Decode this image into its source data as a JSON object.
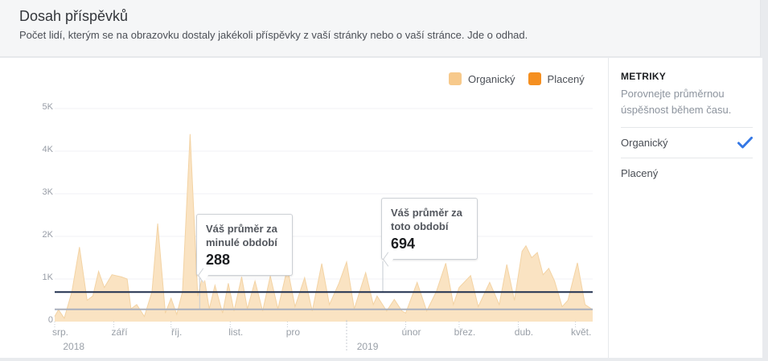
{
  "page": {
    "background": "#e9ebee",
    "card_background": "#ffffff",
    "band_background": "#f5f6f7"
  },
  "header": {
    "title": "Dosah příspěvků",
    "subtitle": "Počet lidí, kterým se na obrazovku dostaly jakékoli příspěvky z vaší stránky nebo o vaší stránce. Jde o odhad."
  },
  "legend": {
    "items": [
      {
        "label": "Organický",
        "color": "#f7c98b"
      },
      {
        "label": "Placený",
        "color": "#f58f20"
      }
    ]
  },
  "metrics_panel": {
    "title": "METRIKY",
    "description": "Porovnejte průměrnou úspěšnost během času.",
    "check_color": "#3578e5",
    "options": [
      {
        "label": "Organický",
        "selected": true
      },
      {
        "label": "Placený",
        "selected": false
      }
    ]
  },
  "chart_data": {
    "type": "area",
    "title": "Dosah příspěvků",
    "xlabel": "",
    "ylabel": "",
    "ylim": [
      0,
      5000
    ],
    "grid": true,
    "yticks": [
      {
        "label": "0",
        "value": 0
      },
      {
        "label": "1K",
        "value": 1000
      },
      {
        "label": "2K",
        "value": 2000
      },
      {
        "label": "3K",
        "value": 3000
      },
      {
        "label": "4K",
        "value": 4000
      },
      {
        "label": "5K",
        "value": 5000
      }
    ],
    "x_domain_days": 282,
    "months": [
      {
        "label": "srp.",
        "day": 0
      },
      {
        "label": "září",
        "day": 31
      },
      {
        "label": "říj.",
        "day": 61
      },
      {
        "label": "list.",
        "day": 92
      },
      {
        "label": "pro",
        "day": 122
      },
      {
        "label": "",
        "day": 153
      },
      {
        "label": "únor",
        "day": 184
      },
      {
        "label": "břez.",
        "day": 212
      },
      {
        "label": "dub.",
        "day": 243
      },
      {
        "label": "květ.",
        "day": 273
      }
    ],
    "years": [
      {
        "label": "2018",
        "day": 10
      },
      {
        "label": "2019",
        "day": 164
      }
    ],
    "year_divider_day": 153,
    "series": [
      {
        "name": "Organický",
        "fill": "#fae3c2",
        "stroke": "#f3d3a4",
        "points": [
          [
            0,
            120
          ],
          [
            2,
            280
          ],
          [
            5,
            80
          ],
          [
            9,
            700
          ],
          [
            13,
            1750
          ],
          [
            17,
            500
          ],
          [
            20,
            600
          ],
          [
            23,
            1180
          ],
          [
            26,
            800
          ],
          [
            30,
            1100
          ],
          [
            35,
            1050
          ],
          [
            38,
            1000
          ],
          [
            40,
            300
          ],
          [
            43,
            400
          ],
          [
            47,
            120
          ],
          [
            51,
            700
          ],
          [
            54,
            2300
          ],
          [
            58,
            200
          ],
          [
            61,
            550
          ],
          [
            64,
            170
          ],
          [
            67,
            700
          ],
          [
            71,
            4400
          ],
          [
            75,
            600
          ],
          [
            78,
            1150
          ],
          [
            81,
            300
          ],
          [
            84,
            850
          ],
          [
            88,
            200
          ],
          [
            91,
            900
          ],
          [
            94,
            250
          ],
          [
            98,
            1050
          ],
          [
            101,
            300
          ],
          [
            105,
            950
          ],
          [
            109,
            250
          ],
          [
            113,
            1070
          ],
          [
            117,
            300
          ],
          [
            122,
            1260
          ],
          [
            126,
            350
          ],
          [
            131,
            1030
          ],
          [
            135,
            250
          ],
          [
            140,
            1360
          ],
          [
            144,
            400
          ],
          [
            149,
            900
          ],
          [
            153,
            1400
          ],
          [
            157,
            300
          ],
          [
            163,
            1150
          ],
          [
            167,
            400
          ],
          [
            169,
            600
          ],
          [
            174,
            250
          ],
          [
            178,
            520
          ],
          [
            182,
            250
          ],
          [
            184,
            200
          ],
          [
            190,
            920
          ],
          [
            195,
            250
          ],
          [
            200,
            700
          ],
          [
            205,
            1370
          ],
          [
            209,
            400
          ],
          [
            212,
            800
          ],
          [
            218,
            1080
          ],
          [
            222,
            350
          ],
          [
            228,
            920
          ],
          [
            233,
            400
          ],
          [
            237,
            1340
          ],
          [
            241,
            500
          ],
          [
            245,
            1650
          ],
          [
            247,
            1780
          ],
          [
            250,
            1500
          ],
          [
            253,
            1620
          ],
          [
            256,
            1100
          ],
          [
            259,
            1250
          ],
          [
            262,
            950
          ],
          [
            266,
            350
          ],
          [
            269,
            500
          ],
          [
            274,
            1380
          ],
          [
            278,
            400
          ],
          [
            282,
            280
          ]
        ]
      }
    ],
    "avg_lines": [
      {
        "id": "previous",
        "value": 288,
        "color": "#a9b0bd",
        "tooltip_label": "Váš průměr za minulé období",
        "tooltip_value": "288",
        "anchor_day": 76
      },
      {
        "id": "current",
        "value": 694,
        "color": "#20304f",
        "tooltip_label": "Váš průměr za toto období",
        "tooltip_value": "694",
        "anchor_day": 172
      }
    ]
  }
}
